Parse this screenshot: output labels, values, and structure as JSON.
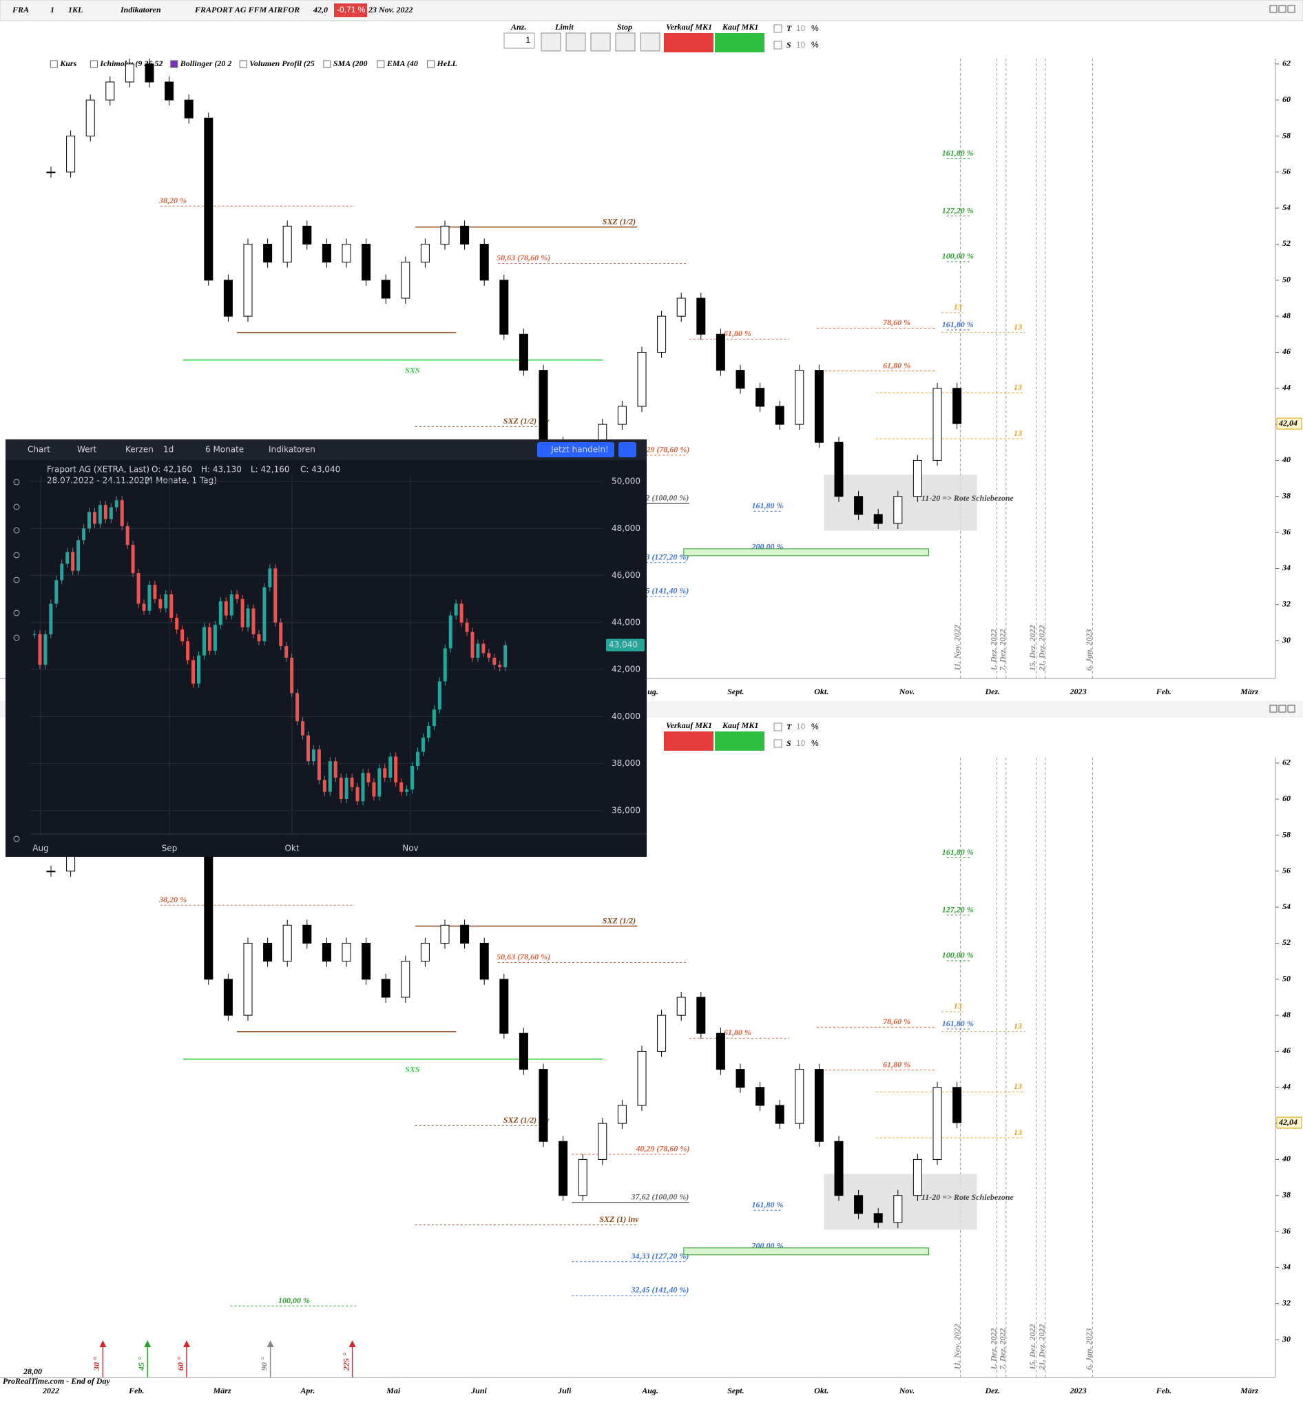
{
  "toolbar": {
    "symbol": "FRA",
    "interval": "1",
    "chart_style": "1KL",
    "indicators": "Indikatoren",
    "instrument": "FRAPORT AG FFM AIRFOR",
    "last": "42,0",
    "change": "-0,71 %",
    "date": "23 Nov. 2022",
    "qty_label": "Anz.",
    "qty": "1",
    "limit": "Limit",
    "stop": "Stop",
    "sell": "Verkauf MK1",
    "buy": "Kauf MK1",
    "t_label": "T",
    "t_value": "10",
    "s_label": "S",
    "s_value": "10",
    "percent": "%"
  },
  "legend": [
    "Kurs",
    "Ichimoku (9 26 52",
    "Bollinger (20 2",
    "Volumen Profil (25",
    "SMA (200",
    "EMA (40",
    "HeLL"
  ],
  "lower_toolbar": {
    "sell": "Verkauf MK1",
    "buy": "Kauf MK1",
    "t_label": "T",
    "t_value": "10",
    "s_label": "S",
    "s_value": "10",
    "percent": "%"
  },
  "price_chart": {
    "type": "candlestick",
    "months": [
      "2022",
      "Feb.",
      "März",
      "Apr.",
      "Mai",
      "Juni",
      "Juli",
      "Aug.",
      "Sept.",
      "Okt.",
      "Nov.",
      "Dez.",
      "2023",
      "Feb.",
      "März"
    ],
    "ylim": [
      27.9,
      62.3
    ],
    "yticks": [
      62,
      60,
      58,
      56,
      54,
      52,
      50,
      48,
      46,
      44,
      42,
      40,
      38,
      36,
      34,
      32,
      30
    ],
    "closes": [
      56,
      58,
      60,
      61,
      62,
      61,
      60,
      59,
      50,
      48,
      52,
      51,
      53,
      52,
      51,
      52,
      50,
      49,
      51,
      52,
      53,
      52,
      50,
      47,
      45,
      41,
      38,
      40,
      42,
      43,
      46,
      48,
      49,
      47,
      45,
      44,
      43,
      42,
      45,
      41,
      38,
      37,
      36.5,
      38,
      40,
      44,
      42.04
    ],
    "annotations": [
      {
        "text": "161,80 %",
        "price": 56.74,
        "color": "#2ca02c"
      },
      {
        "text": "127,20 %",
        "price": 53.56,
        "color": "#2ca02c"
      },
      {
        "text": "100,00 %",
        "price": 51.03,
        "color": "#2ca02c"
      },
      {
        "text": "161,80 %",
        "price": 47.24,
        "color": "#3b6fd8"
      },
      {
        "text": "78,60 %",
        "price": 47.34,
        "color": "#e0603a"
      },
      {
        "text": "61,80 %",
        "price": 44.96,
        "color": "#e0603a"
      },
      {
        "text": "61,80 %",
        "price": 46.73,
        "color": "#e0603a"
      },
      {
        "text": "38,20 %",
        "price": 54.11,
        "color": "#e0603a"
      },
      {
        "text": "50,63 (78,60 %)",
        "price": 50.93,
        "color": "#e0603a"
      },
      {
        "text": "SXZ (1/2)",
        "price": 52.95,
        "color": "#8b4513"
      },
      {
        "text": "SXZ (1/2) inv",
        "price": 41.88,
        "color": "#8b4513"
      },
      {
        "text": "40,29 (78,60 %)",
        "price": 40.29,
        "color": "#e0603a"
      },
      {
        "text": "37,62 (100,00 %)",
        "price": 37.62,
        "color": "#666666"
      },
      {
        "text": "SXZ (1) inv",
        "price": 36.37,
        "color": "#8b4513"
      },
      {
        "text": "161,80 %",
        "price": 37.18,
        "color": "#3b6fd8"
      },
      {
        "text": "200,00 %",
        "price": 34.9,
        "color": "#3b6fd8"
      },
      {
        "text": "34,33 (127,20 %)",
        "price": 34.33,
        "color": "#3b6fd8"
      },
      {
        "text": "32,45 (141,40 %)",
        "price": 32.45,
        "color": "#3b6fd8"
      },
      {
        "text": "100,00 %",
        "price": 31.87,
        "color": "#2ca02c"
      },
      {
        "text": "SXS",
        "price": 45.57,
        "color": "#2ecc40"
      },
      {
        "text": "13",
        "price": 47.1,
        "color": "#f0a020"
      },
      {
        "text": "13",
        "price": 43.75,
        "color": "#f0a020"
      },
      {
        "text": "13",
        "price": 41.2,
        "color": "#f0a020"
      },
      {
        "text": "13",
        "price": 48.2,
        "color": "#f0a020"
      }
    ],
    "support_line": {
      "price": 47.09,
      "color": "#8b4513"
    },
    "zone": {
      "text": "11-20 => Rote Schiebezone",
      "low": 36.1,
      "high": 39.2
    },
    "date_lines": [
      "11. Nov. 2022",
      "1. Dez. 2022",
      "7. Dez. 2022",
      "15. Dez. 2022",
      "21. Dez. 2022",
      "6. Jan. 2023"
    ],
    "price_tag": {
      "value": 42.04,
      "label": "42,04"
    }
  },
  "angle_markers": [
    {
      "text": "30 °",
      "color": "#d62728"
    },
    {
      "text": "45 °",
      "color": "#2ca02c"
    },
    {
      "text": "60 °",
      "color": "#d62728"
    },
    {
      "text": "90 °",
      "color": "#888888"
    },
    {
      "text": "225 °",
      "color": "#d62728"
    }
  ],
  "footer": {
    "source": "ProRealTime.com - End of Day",
    "low_label": "28,00"
  },
  "widget": {
    "toolbar": [
      "Chart",
      "Wert",
      "Kerzen",
      "1d",
      "6 Monate",
      "Indikatoren"
    ],
    "trade_button": "Jetzt handeln!",
    "instrument": "Fraport AG (XETRA, Last)",
    "ohlc": [
      "O: 42,160",
      "H: 43,130",
      "L: 42,160",
      "C: 43,040"
    ],
    "range": "28.07.2022 - 24.11.2022",
    "range_note": "(4 Monate, 1 Tag)",
    "ylim": [
      35.3,
      51.3
    ],
    "yticks": [
      {
        "value": 50,
        "label": "50,000"
      },
      {
        "value": 48,
        "label": "48,000"
      },
      {
        "value": 46,
        "label": "46,000"
      },
      {
        "value": 44,
        "label": "44,000"
      },
      {
        "value": 42,
        "label": "42,000"
      },
      {
        "value": 40,
        "label": "40,000"
      },
      {
        "value": 38,
        "label": "38,000"
      },
      {
        "value": 36,
        "label": "36,000"
      }
    ],
    "months": [
      "Aug",
      "Sep",
      "Okt",
      "Nov"
    ],
    "closes": [
      43.5,
      42.2,
      43.5,
      44.8,
      45.8,
      46.5,
      47.0,
      46.2,
      47.5,
      48.0,
      48.7,
      48.2,
      49.0,
      48.4,
      48.9,
      49.2,
      48.1,
      47.3,
      46.1,
      44.8,
      44.5,
      45.6,
      45.0,
      44.6,
      45.2,
      44.2,
      43.7,
      43.2,
      42.4,
      41.4,
      42.6,
      43.8,
      42.8,
      43.9,
      44.9,
      44.3,
      45.2,
      45.0,
      43.8,
      44.6,
      43.5,
      43.2,
      45.5,
      46.3,
      44.0,
      43.0,
      42.5,
      41.0,
      39.8,
      39.2,
      38.1,
      38.6,
      37.3,
      36.8,
      38.1,
      37.4,
      36.5,
      37.4,
      37.0,
      36.4,
      37.6,
      37.2,
      36.6,
      37.8,
      37.4,
      38.3,
      37.2,
      36.8,
      36.9,
      37.9,
      38.5,
      39.1,
      39.6,
      40.3,
      41.5,
      42.9,
      44.3,
      44.8,
      44.0,
      43.6,
      42.5,
      43.1,
      42.7,
      42.5,
      42.2,
      42.1,
      43.04
    ],
    "price_tag": {
      "value": 43.04,
      "label": "43,040"
    }
  }
}
